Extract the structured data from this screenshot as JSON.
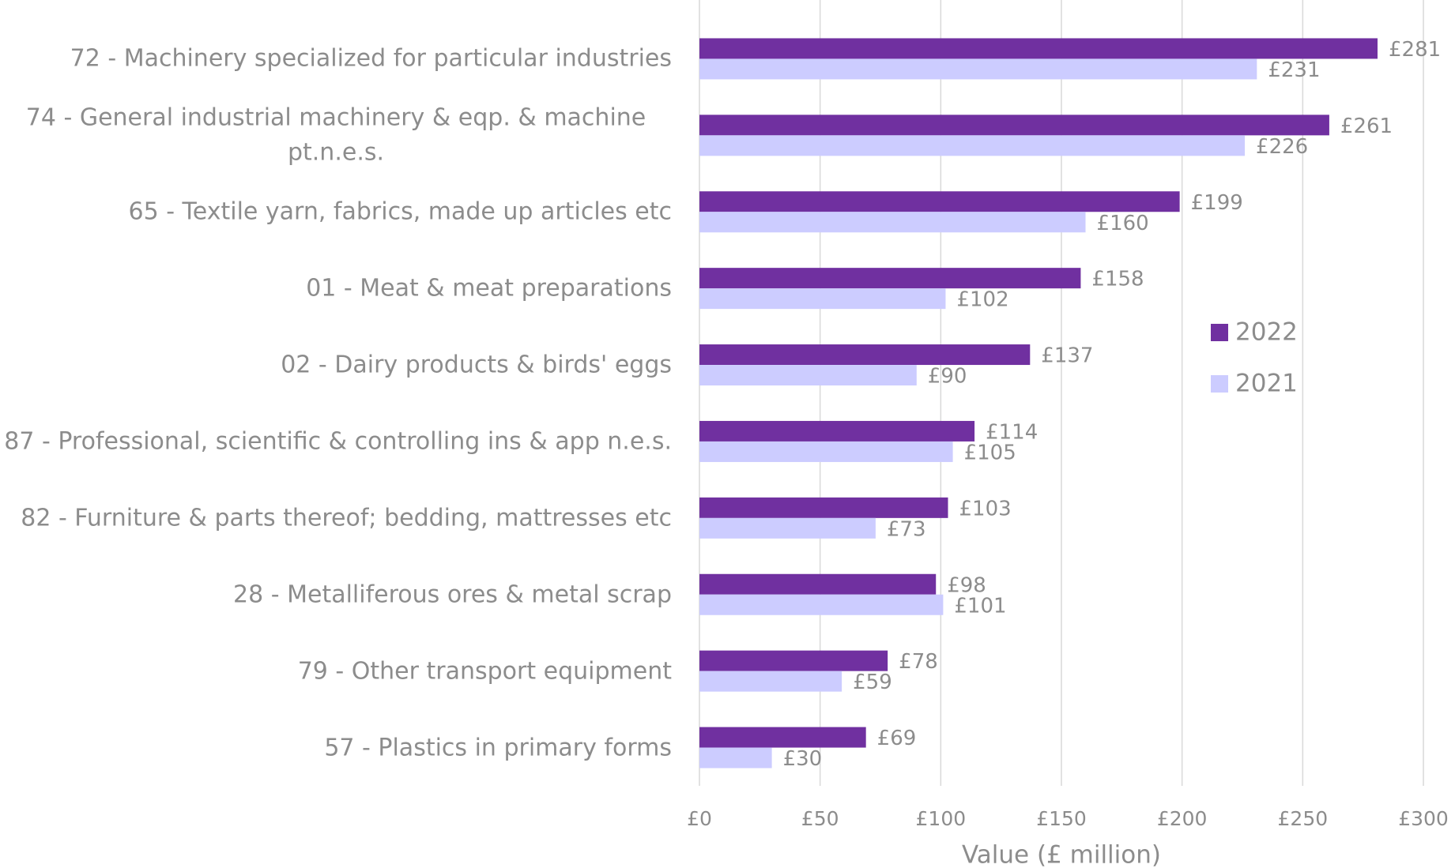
{
  "chart_data": {
    "type": "hbar",
    "categories": [
      "72 - Machinery specialized for particular industries",
      "74 - General industrial machinery & eqp. & machine pt.n.e.s.",
      "65 - Textile yarn, fabrics, made up articles etc",
      "01 - Meat & meat preparations",
      "02 - Dairy products & birds' eggs",
      "87 - Professional, scientific & controlling ins & app n.e.s.",
      "82 - Furniture & parts thereof; bedding, mattresses etc",
      "28 - Metalliferous ores & metal scrap",
      "79 - Other transport equipment",
      "57 - Plastics in primary forms"
    ],
    "series": [
      {
        "name": "2022",
        "color": "#7030a0",
        "values": [
          281,
          261,
          199,
          158,
          137,
          114,
          103,
          98,
          78,
          69
        ],
        "value_labels": [
          "£281",
          "£261",
          "£199",
          "£158",
          "£137",
          "£114",
          "£103",
          "£98",
          "£78",
          "£69"
        ]
      },
      {
        "name": "2021",
        "color": "#ccccff",
        "values": [
          231,
          226,
          160,
          102,
          90,
          105,
          73,
          101,
          59,
          30
        ],
        "value_labels": [
          "£231",
          "£226",
          "£160",
          "£102",
          "£90",
          "£105",
          "£73",
          "£101",
          "£59",
          "£30"
        ]
      }
    ],
    "xlabel": "Value (£ million)",
    "xlim": [
      0,
      300
    ],
    "xticks": [
      {
        "value": 0,
        "label": "£0"
      },
      {
        "value": 50,
        "label": "£50"
      },
      {
        "value": 100,
        "label": "£100"
      },
      {
        "value": 150,
        "label": "£150"
      },
      {
        "value": 200,
        "label": "£200"
      },
      {
        "value": 250,
        "label": "£250"
      },
      {
        "value": 300,
        "label": "£300"
      }
    ],
    "grid": true,
    "legend": "right"
  }
}
